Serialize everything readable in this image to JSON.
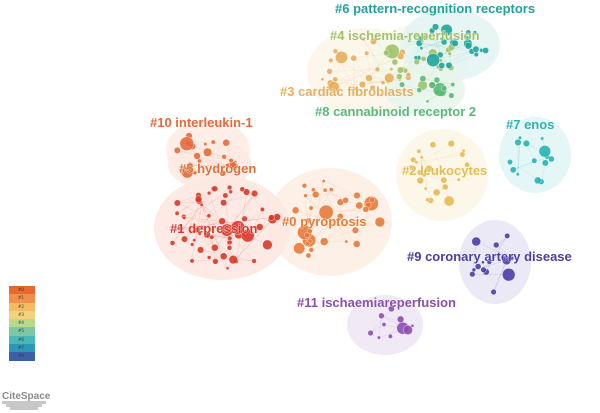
{
  "clusters": [
    {
      "id": "#0",
      "label": "#0 pyroptosis",
      "color": "#e77a3a"
    },
    {
      "id": "#1",
      "label": "#1 depression",
      "color": "#d8382a"
    },
    {
      "id": "#2",
      "label": "#2 leukocytes",
      "color": "#e6b94f"
    },
    {
      "id": "#3",
      "label": "#3 cardiac fibroblasts",
      "color": "#e6ae5e"
    },
    {
      "id": "#4",
      "label": "#4 ischemia-reperfusion",
      "color": "#9fc26a"
    },
    {
      "id": "#5",
      "label": "#5 hydrogen",
      "color": "#dc6f3a"
    },
    {
      "id": "#6",
      "label": "#6 pattern-recognition receptors",
      "color": "#1fa49b"
    },
    {
      "id": "#7",
      "label": "#7 enos",
      "color": "#25b4b2"
    },
    {
      "id": "#8",
      "label": "#8 cannabinoid receptor 2",
      "color": "#5cb878"
    },
    {
      "id": "#9",
      "label": "#9 coronary artery disease",
      "color": "#4a3ea6"
    },
    {
      "id": "#10",
      "label": "#10 interleukin-1",
      "color": "#e6693e"
    },
    {
      "id": "#11",
      "label": "#11 ischaemiareperfusion",
      "color": "#8b4fb0"
    }
  ],
  "legend": {
    "items": [
      {
        "text": "#0",
        "color": "#e8692e"
      },
      {
        "text": "#1",
        "color": "#f0904a"
      },
      {
        "text": "#2",
        "color": "#f4bb62"
      },
      {
        "text": "#3",
        "color": "#f2d27a"
      },
      {
        "text": "#4",
        "color": "#b9d88a"
      },
      {
        "text": "#5",
        "color": "#7cc8a6"
      },
      {
        "text": "#6",
        "color": "#4ab6b8"
      },
      {
        "text": "#7",
        "color": "#2e96b6"
      },
      {
        "text": "#8",
        "color": "#3c60a8"
      }
    ]
  },
  "logo": {
    "text": "CiteSpace"
  }
}
